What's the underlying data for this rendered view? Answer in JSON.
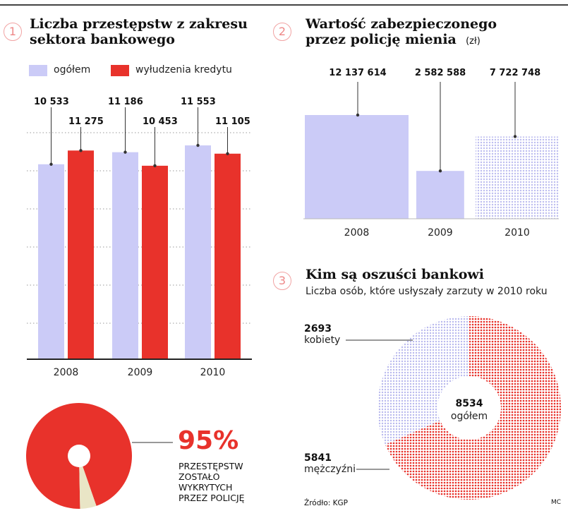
{
  "colors": {
    "lavender": "#cbcbf7",
    "red": "#e8322b",
    "cream": "#e9e5c6",
    "pink": "#f1a3a3"
  },
  "panel1": {
    "number": "1",
    "title_line1": "Liczba przestępstw z zakresu",
    "title_line2": "sektora bankowego",
    "legend": [
      "ogółem",
      "wyłudzenia kredytu"
    ]
  },
  "panel2": {
    "number": "2",
    "title_line1": "Wartość zabezpieczonego",
    "title_line2": "przez policję mienia",
    "unit": "(zł)"
  },
  "panel3": {
    "number": "3",
    "title": "Kim są oszuści bankowi",
    "subtitle": "Liczba osób, które usłyszały zarzuty w 2010 roku",
    "source": "Źródło: KGP",
    "credit": "MC"
  },
  "panel4": {
    "percent": "95%",
    "caption": [
      "PRZESTĘPSTW",
      "ZOSTAŁO",
      "WYKRYTYCH",
      "PRZEZ POLICJĘ"
    ]
  },
  "chart_data": [
    {
      "type": "bar",
      "title": "Liczba przestępstw z zakresu sektora bankowego",
      "categories": [
        "2008",
        "2009",
        "2010"
      ],
      "series": [
        {
          "name": "ogółem",
          "values": [
            10533,
            11186,
            11553
          ],
          "labels": [
            "10 533",
            "11 186",
            "11 553"
          ]
        },
        {
          "name": "wyłudzenia kredytu",
          "values": [
            11275,
            10453,
            11105
          ],
          "labels": [
            "11 275",
            "10 453",
            "11 105"
          ]
        }
      ],
      "grid": true
    },
    {
      "type": "bar",
      "title": "Wartość zabezpieczonego przez policję mienia (zł)",
      "categories": [
        "2008",
        "2009",
        "2010"
      ],
      "values": [
        12137614,
        2582588,
        7722748
      ],
      "labels": [
        "12 137 614",
        "2 582 588",
        "7 722 748"
      ]
    },
    {
      "type": "pie",
      "title": "Kim są oszuści bankowi",
      "total": 8534,
      "total_label": "8534",
      "total_name": "ogółem",
      "slices": [
        {
          "name": "kobiety",
          "value": 2693,
          "label": "2693"
        },
        {
          "name": "mężczyźni",
          "value": 5841,
          "label": "5841"
        }
      ]
    },
    {
      "type": "pie",
      "slices": [
        {
          "value": 95,
          "label": "95%"
        },
        {
          "value": 5
        }
      ]
    }
  ]
}
